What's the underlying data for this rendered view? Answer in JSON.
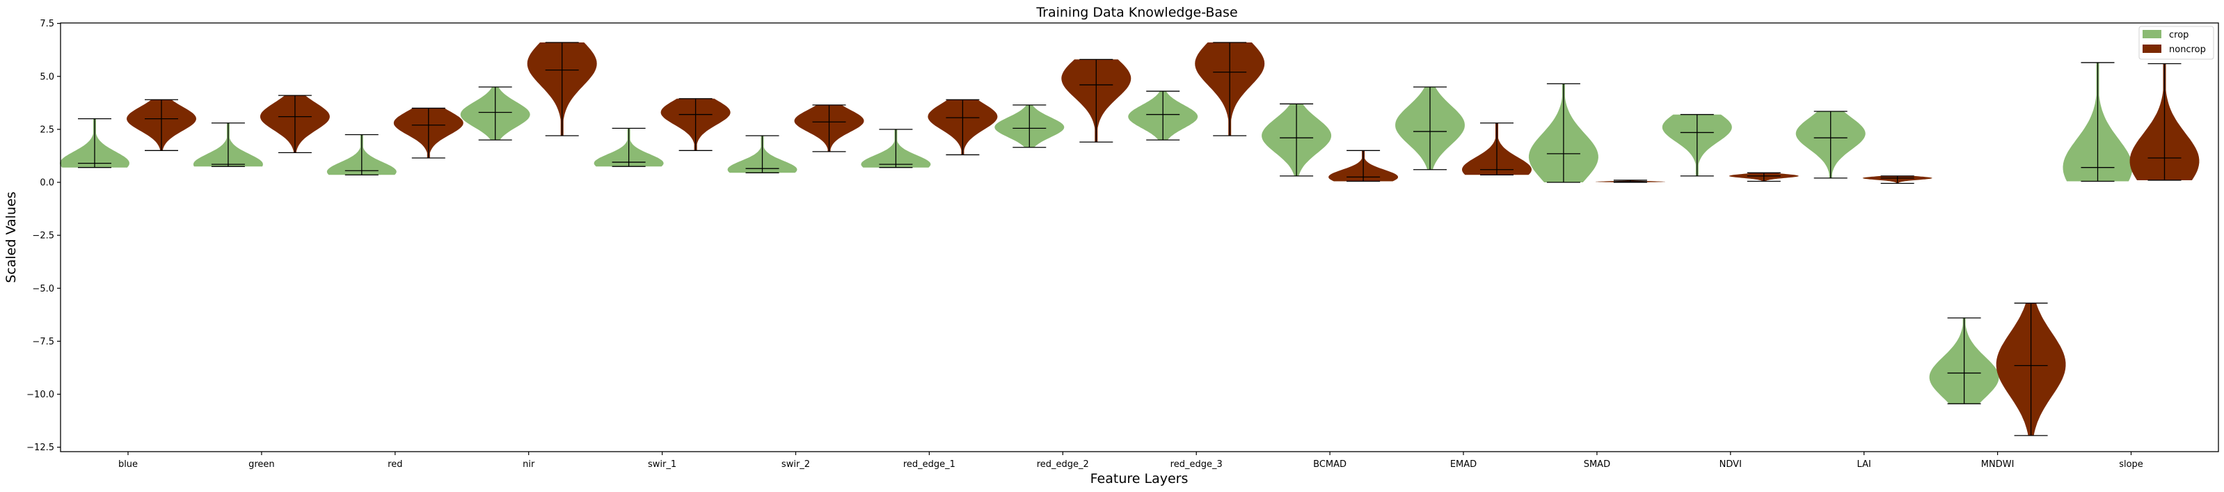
{
  "chart_data": {
    "type": "violin",
    "title": "Training Data Knowledge-Base",
    "xlabel": "Feature Layers",
    "ylabel": "Scaled Values",
    "ylim": [
      -12.9,
      7.5
    ],
    "yticks": [
      7.5,
      5.0,
      2.5,
      0.0,
      -2.5,
      -5.0,
      -7.5,
      -10.0,
      -12.5
    ],
    "ytick_labels": [
      "7.5",
      "5.0",
      "2.5",
      "0.0",
      "−2.5",
      "−5.0",
      "−7.5",
      "−10.0",
      "−12.5"
    ],
    "grid": false,
    "legend_position": "upper right",
    "categories": [
      "blue",
      "green",
      "red",
      "nir",
      "swir_1",
      "swir_2",
      "red_edge_1",
      "red_edge_2",
      "red_edge_3",
      "BCMAD",
      "EMAD",
      "SMAD",
      "NDVI",
      "LAI",
      "MNDWI",
      "slope"
    ],
    "series": [
      {
        "name": "crop",
        "color": "#8bba73",
        "min": [
          0.7,
          0.75,
          0.35,
          2.0,
          0.75,
          0.45,
          0.7,
          1.65,
          2.0,
          0.3,
          0.6,
          0.0,
          0.3,
          0.2,
          -10.45,
          0.05
        ],
        "median": [
          0.9,
          0.85,
          0.55,
          3.3,
          0.95,
          0.65,
          0.85,
          2.55,
          3.2,
          2.1,
          2.4,
          1.35,
          2.35,
          2.1,
          -9.0,
          0.7
        ],
        "max": [
          3.0,
          2.8,
          2.25,
          4.5,
          2.55,
          2.2,
          2.5,
          3.65,
          4.3,
          3.7,
          4.5,
          4.65,
          3.2,
          3.35,
          -6.4,
          5.65
        ],
        "mode": [
          0.9,
          0.85,
          0.5,
          3.2,
          0.9,
          0.6,
          0.85,
          2.6,
          3.1,
          2.2,
          2.7,
          1.2,
          2.6,
          2.3,
          -9.2,
          0.7
        ],
        "width": [
          0.9,
          0.9,
          0.9,
          0.9,
          0.9,
          0.9,
          0.9,
          0.9,
          0.9,
          0.9,
          0.9,
          0.9,
          0.9,
          0.9,
          0.9,
          0.9
        ]
      },
      {
        "name": "noncrop",
        "color": "#7b2900",
        "min": [
          1.5,
          1.4,
          1.15,
          2.2,
          1.5,
          1.45,
          1.3,
          1.9,
          2.2,
          0.05,
          0.35,
          0.0,
          0.05,
          -0.05,
          -11.95,
          0.1
        ],
        "median": [
          3.0,
          3.1,
          2.7,
          5.3,
          3.2,
          2.85,
          3.05,
          4.6,
          5.2,
          0.25,
          0.6,
          0.03,
          0.3,
          0.2,
          -8.65,
          1.15
        ],
        "max": [
          3.9,
          4.1,
          3.5,
          6.6,
          3.95,
          3.65,
          3.9,
          5.8,
          6.6,
          1.5,
          2.8,
          0.1,
          0.45,
          0.3,
          -5.7,
          5.6
        ],
        "mode": [
          3.0,
          3.1,
          2.8,
          5.6,
          3.3,
          2.9,
          3.1,
          4.9,
          5.6,
          0.25,
          0.6,
          0.03,
          0.3,
          0.2,
          -8.6,
          1.0
        ],
        "width": [
          0.9,
          0.9,
          0.9,
          0.9,
          0.9,
          0.9,
          0.9,
          0.9,
          0.9,
          0.9,
          0.9,
          0.9,
          0.9,
          0.9,
          0.9,
          0.9
        ]
      }
    ]
  }
}
